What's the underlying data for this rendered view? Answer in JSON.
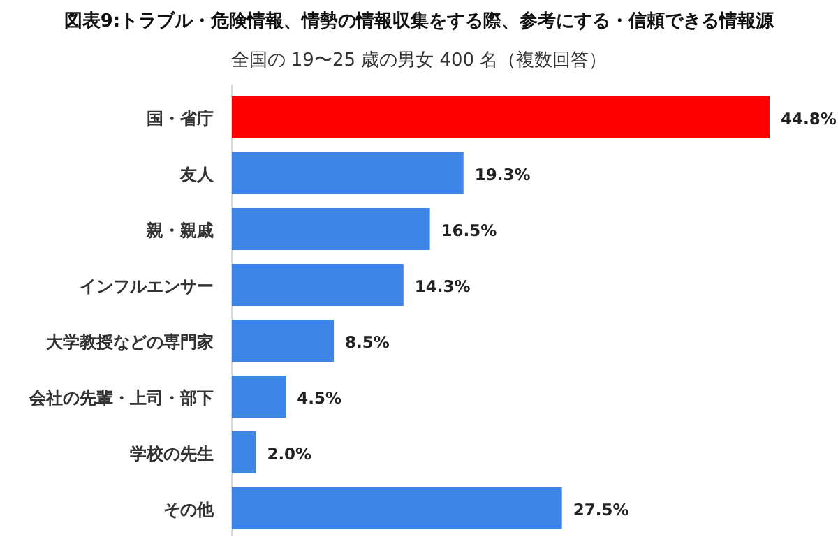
{
  "chart_data": {
    "type": "bar",
    "orientation": "horizontal",
    "title": "図表9:トラブル・危険情報、情勢の情報収集をする際、参考にする・信頼できる情報源",
    "subtitle": "全国の 19〜25 歳の男女 400 名（複数回答）",
    "categories": [
      "国・省庁",
      "友人",
      "親・親戚",
      "インフルエンサー",
      "大学教授などの専門家",
      "会社の先輩・上司・部下",
      "学校の先生",
      "その他"
    ],
    "values": [
      44.8,
      19.3,
      16.5,
      14.3,
      8.5,
      4.5,
      2.0,
      27.5
    ],
    "value_labels": [
      "44.8%",
      "19.3%",
      "16.5%",
      "14.3%",
      "8.5%",
      "4.5%",
      "2.0%",
      "27.5%"
    ],
    "colors": [
      "#ff0000",
      "#3d85e6",
      "#3d85e6",
      "#3d85e6",
      "#3d85e6",
      "#3d85e6",
      "#3d85e6",
      "#3d85e6"
    ]
  }
}
